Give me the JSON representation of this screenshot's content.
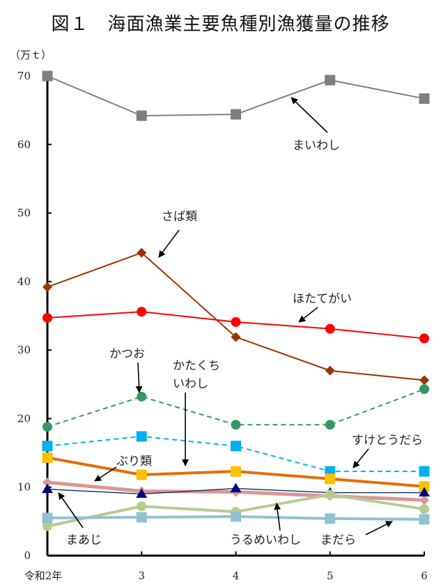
{
  "chart_data": {
    "type": "line",
    "title": "図１　海面漁業主要魚種別漁獲量の推移",
    "ylabel": "（万ｔ）",
    "xlabel": "",
    "categories": [
      "令和2年",
      "3",
      "4",
      "5",
      "6"
    ],
    "ylim": [
      0,
      70
    ],
    "yticks": [
      0,
      10,
      20,
      30,
      40,
      50,
      60,
      70
    ],
    "grid": false,
    "legend": "none (inline annotations with arrows)",
    "series": [
      {
        "name": "まいわし",
        "values": [
          70.0,
          64.2,
          64.4,
          69.4,
          66.7
        ],
        "color": "#7f7f7f",
        "marker": "square",
        "dash": false,
        "width": 2
      },
      {
        "name": "さば類",
        "values": [
          39.2,
          44.2,
          31.9,
          27.0,
          25.6
        ],
        "color": "#993300",
        "marker": "diamond",
        "dash": false,
        "width": 2
      },
      {
        "name": "ほたてがい",
        "values": [
          34.7,
          35.6,
          34.1,
          33.1,
          31.7
        ],
        "color": "#ff0000",
        "marker": "circle",
        "dash": false,
        "width": 2
      },
      {
        "name": "かつお",
        "values": [
          18.8,
          23.2,
          19.1,
          19.1,
          24.3
        ],
        "color": "#339966",
        "marker": "circle",
        "dash": true,
        "width": 2
      },
      {
        "name": "すけとうだら",
        "values": [
          16.0,
          17.4,
          16.0,
          12.3,
          12.3
        ],
        "color": "#00b0f0",
        "marker": "square",
        "dash": true,
        "width": 2
      },
      {
        "name": "かたくちいわし",
        "values": [
          14.3,
          11.8,
          12.3,
          11.2,
          10.1
        ],
        "color": "#e46c0a",
        "marker": "square",
        "markerColor": "#ffc000",
        "dash": false,
        "width": 4
      },
      {
        "name": "ぶり類",
        "values": [
          10.7,
          9.4,
          9.3,
          8.7,
          8.1
        ],
        "color": "#d99694",
        "marker": "diamond",
        "dash": false,
        "width": 5
      },
      {
        "name": "まあじ",
        "values": [
          9.7,
          9.0,
          9.8,
          9.2,
          9.2
        ],
        "color": "#1f3864",
        "marker": "triangle",
        "markerColor": "#000080",
        "dash": false,
        "width": 1.5
      },
      {
        "name": "うるめいわし",
        "values": [
          4.3,
          7.2,
          6.4,
          8.9,
          6.8
        ],
        "color": "#b5cc8e",
        "marker": "circle",
        "dash": false,
        "width": 4
      },
      {
        "name": "まだら",
        "values": [
          5.5,
          5.6,
          5.7,
          5.4,
          5.3
        ],
        "color": "#92c0d3",
        "marker": "square",
        "dash": false,
        "width": 4
      }
    ],
    "annotations": [
      {
        "text": "まいわし",
        "series": "まいわし"
      },
      {
        "text": "さば類",
        "series": "さば類"
      },
      {
        "text": "ほたてがい",
        "series": "ほたてがい"
      },
      {
        "text": "かつお",
        "series": "かつお"
      },
      {
        "text": "かたくち",
        "series": "かたくちいわし"
      },
      {
        "text": "いわし",
        "series": "かたくちいわし"
      },
      {
        "text": "すけとうだら",
        "series": "すけとうだら"
      },
      {
        "text": "ぶり類",
        "series": "ぶり類"
      },
      {
        "text": "まあじ",
        "series": "まあじ"
      },
      {
        "text": "うるめいわし",
        "series": "うるめいわし"
      },
      {
        "text": "まだら",
        "series": "まだら"
      }
    ]
  }
}
